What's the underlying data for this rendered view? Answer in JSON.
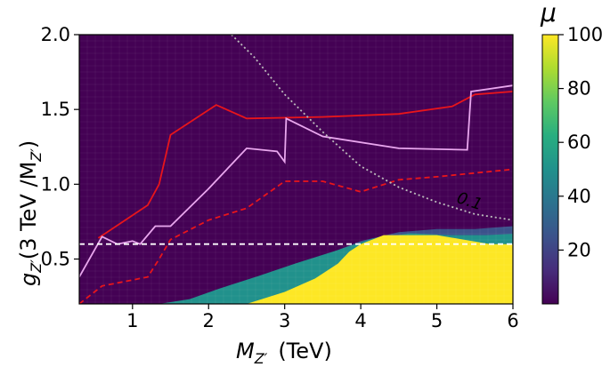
{
  "chart_data": {
    "type": "heatmap",
    "xlabel_main": "M",
    "xlabel_sub": "Z′",
    "xlabel_unit": "(TeV)",
    "ylabel_main": "g",
    "ylabel_sub": "Z′",
    "ylabel_rest_a": "(3 TeV /M",
    "ylabel_rest_sub": "Z′",
    "ylabel_rest_b": ")",
    "xlim": [
      0.3,
      6.0
    ],
    "ylim": [
      0.2,
      2.0
    ],
    "x_ticks": [
      "1",
      "2",
      "3",
      "4",
      "5",
      "6"
    ],
    "y_ticks": [
      "0.5",
      "1.0",
      "1.5",
      "2.0"
    ],
    "colorbar": {
      "label": "μ",
      "range": [
        0,
        100
      ],
      "ticks": [
        "20",
        "40",
        "60",
        "80",
        "100"
      ],
      "colors": [
        "#440154",
        "#472d7b",
        "#3b528b",
        "#2c728e",
        "#21918c",
        "#28ae80",
        "#5ec962",
        "#addc30",
        "#fde725"
      ]
    },
    "heatmap": {
      "description_free": true,
      "transition_boundary": [
        [
          1.2,
          0.2
        ],
        [
          1.6,
          0.2
        ],
        [
          2.0,
          0.26
        ],
        [
          2.5,
          0.33
        ],
        [
          3.0,
          0.42
        ],
        [
          3.5,
          0.52
        ],
        [
          4.0,
          0.62
        ],
        [
          4.5,
          0.68
        ],
        [
          5.0,
          0.7
        ],
        [
          5.5,
          0.7
        ],
        [
          6.0,
          0.72
        ]
      ],
      "yellow_boundary": [
        [
          2.5,
          0.2
        ],
        [
          3.0,
          0.28
        ],
        [
          3.4,
          0.37
        ],
        [
          3.7,
          0.47
        ],
        [
          3.85,
          0.55
        ],
        [
          4.0,
          0.6
        ],
        [
          4.3,
          0.66
        ],
        [
          5.0,
          0.66
        ],
        [
          5.7,
          0.6
        ],
        [
          6.0,
          0.6
        ]
      ]
    },
    "annotation": "0.1",
    "series": [
      {
        "color": "#e8151b",
        "style": "solid",
        "points": [
          [
            0.55,
            0.64
          ],
          [
            1.2,
            0.86
          ],
          [
            1.35,
            1.0
          ],
          [
            1.5,
            1.33
          ],
          [
            2.1,
            1.53
          ],
          [
            2.5,
            1.44
          ],
          [
            3.5,
            1.45
          ],
          [
            4.5,
            1.47
          ],
          [
            5.2,
            1.52
          ],
          [
            5.5,
            1.6
          ],
          [
            6.0,
            1.62
          ]
        ]
      },
      {
        "color": "#e8151b",
        "style": "dashed",
        "points": [
          [
            0.3,
            0.2
          ],
          [
            0.6,
            0.32
          ],
          [
            1.2,
            0.38
          ],
          [
            1.35,
            0.5
          ],
          [
            1.5,
            0.63
          ],
          [
            2.0,
            0.76
          ],
          [
            2.5,
            0.84
          ],
          [
            3.0,
            1.02
          ],
          [
            3.5,
            1.02
          ],
          [
            4.0,
            0.95
          ],
          [
            4.5,
            1.03
          ],
          [
            5.0,
            1.05
          ],
          [
            6.0,
            1.1
          ]
        ]
      },
      {
        "color": "#e9a7ee",
        "style": "solid",
        "points": [
          [
            0.3,
            0.38
          ],
          [
            0.6,
            0.65
          ],
          [
            0.8,
            0.6
          ],
          [
            1.0,
            0.62
          ],
          [
            1.1,
            0.6
          ],
          [
            1.3,
            0.72
          ],
          [
            1.5,
            0.72
          ],
          [
            1.7,
            0.82
          ],
          [
            2.0,
            0.97
          ],
          [
            2.5,
            1.24
          ],
          [
            2.9,
            1.22
          ],
          [
            3.0,
            1.15
          ],
          [
            3.02,
            1.44
          ],
          [
            3.5,
            1.32
          ],
          [
            4.5,
            1.24
          ],
          [
            5.4,
            1.23
          ],
          [
            5.45,
            1.62
          ],
          [
            6.0,
            1.66
          ]
        ]
      },
      {
        "color": "#bcbcbc",
        "style": "dotted",
        "points": [
          [
            2.3,
            2.0
          ],
          [
            2.6,
            1.85
          ],
          [
            3.0,
            1.6
          ],
          [
            3.5,
            1.35
          ],
          [
            4.0,
            1.12
          ],
          [
            4.5,
            0.98
          ],
          [
            5.0,
            0.88
          ],
          [
            5.5,
            0.8
          ],
          [
            6.0,
            0.76
          ]
        ]
      },
      {
        "color": "#ffffff",
        "style": "dashed",
        "points": [
          [
            0.3,
            0.6
          ],
          [
            6.0,
            0.6
          ]
        ]
      }
    ]
  }
}
